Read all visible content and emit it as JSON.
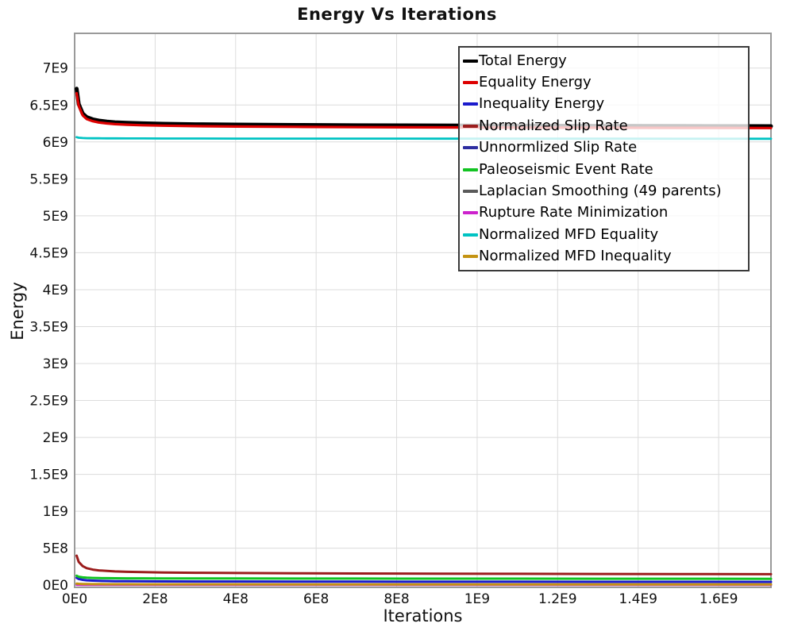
{
  "page": {
    "background": "#ffffff"
  },
  "chart_data": {
    "type": "line",
    "title": "Energy Vs Iterations",
    "xlabel": "Iterations",
    "ylabel": "Energy",
    "xlim": [
      0,
      1730000000.0
    ],
    "ylim": [
      -30000000.0,
      7470000000.0
    ],
    "grid": true,
    "grid_color": "#dcdcdc",
    "frame_color": "#9a9a9a",
    "tick_label_color": "#111111",
    "tick_font_size": 17,
    "legend_position": "top-right",
    "x_ticks": [
      {
        "value": 0,
        "label": "0E0"
      },
      {
        "value": 200000000.0,
        "label": "2E8"
      },
      {
        "value": 400000000.0,
        "label": "4E8"
      },
      {
        "value": 600000000.0,
        "label": "6E8"
      },
      {
        "value": 800000000.0,
        "label": "8E8"
      },
      {
        "value": 1000000000.0,
        "label": "1E9"
      },
      {
        "value": 1200000000.0,
        "label": "1.2E9"
      },
      {
        "value": 1400000000.0,
        "label": "1.4E9"
      },
      {
        "value": 1600000000.0,
        "label": "1.6E9"
      }
    ],
    "y_ticks": [
      {
        "value": 0,
        "label": "0E0"
      },
      {
        "value": 500000000.0,
        "label": "5E8"
      },
      {
        "value": 1000000000.0,
        "label": "1E9"
      },
      {
        "value": 1500000000.0,
        "label": "1.5E9"
      },
      {
        "value": 2000000000.0,
        "label": "2E9"
      },
      {
        "value": 2500000000.0,
        "label": "2.5E9"
      },
      {
        "value": 3000000000.0,
        "label": "3E9"
      },
      {
        "value": 3500000000.0,
        "label": "3.5E9"
      },
      {
        "value": 4000000000.0,
        "label": "4E9"
      },
      {
        "value": 4500000000.0,
        "label": "4.5E9"
      },
      {
        "value": 5000000000.0,
        "label": "5E9"
      },
      {
        "value": 5500000000.0,
        "label": "5.5E9"
      },
      {
        "value": 6000000000.0,
        "label": "6E9"
      },
      {
        "value": 6500000000.0,
        "label": "6.5E9"
      },
      {
        "value": 7000000000.0,
        "label": "7E9"
      }
    ],
    "x": [
      5000000.0,
      10000000.0,
      20000000.0,
      30000000.0,
      45000000.0,
      60000000.0,
      80000000.0,
      100000000.0,
      130000000.0,
      170000000.0,
      220000000.0,
      300000000.0,
      400000000.0,
      550000000.0,
      700000000.0,
      900000000.0,
      1100000000.0,
      1300000000.0,
      1500000000.0,
      1730000000.0
    ],
    "series": [
      {
        "id": "total-energy",
        "name": "Total Energy",
        "color": "#000000",
        "width": 5,
        "values": [
          6720000000.0,
          6515000000.0,
          6385000000.0,
          6335000000.0,
          6305000000.0,
          6288000000.0,
          6275000000.0,
          6266000000.0,
          6258000000.0,
          6251000000.0,
          6245000000.0,
          6239000000.0,
          6234000000.0,
          6229000000.0,
          6225000000.0,
          6222000000.0,
          6219000000.0,
          6217000000.0,
          6215000000.0,
          6213000000.0
        ]
      },
      {
        "id": "equality-energy",
        "name": "Equality Energy",
        "color": "#dd0000",
        "width": 3.2,
        "values": [
          6660000000.0,
          6490000000.0,
          6360000000.0,
          6310000000.0,
          6280000000.0,
          6263000000.0,
          6250000000.0,
          6241000000.0,
          6233000000.0,
          6226000000.0,
          6220000000.0,
          6214000000.0,
          6209000000.0,
          6204000000.0,
          6200000000.0,
          6197000000.0,
          6194000000.0,
          6192000000.0,
          6190000000.0,
          6188000000.0
        ]
      },
      {
        "id": "inequality-energy",
        "name": "Inequality Energy",
        "color": "#1a1acc",
        "width": 3,
        "values": [
          100000000.0,
          84000000.0,
          72000000.0,
          66000000.0,
          61000000.0,
          58000000.0,
          56000000.0,
          54000000.0,
          53000000.0,
          52000000.0,
          51000000.0,
          50000000.0,
          49000000.0,
          48000000.0,
          47000000.0,
          46000000.0,
          46000000.0,
          45000000.0,
          45000000.0,
          44000000.0
        ]
      },
      {
        "id": "normalized-slip-rate",
        "name": "Normalized Slip Rate",
        "color": "#9b1c1c",
        "width": 3,
        "values": [
          400000000.0,
          315000000.0,
          258000000.0,
          230000000.0,
          211000000.0,
          200000000.0,
          192000000.0,
          186000000.0,
          181000000.0,
          176000000.0,
          172000000.0,
          168000000.0,
          164000000.0,
          161000000.0,
          158000000.0,
          156000000.0,
          154000000.0,
          152000000.0,
          150000000.0,
          148000000.0
        ]
      },
      {
        "id": "unnormlized-slip-rate",
        "name": "Unnormlized Slip Rate",
        "color": "#2d2da0",
        "width": 2.5,
        "values": [
          7000000.0,
          6500000.0,
          6000000.0,
          6000000.0,
          6000000.0,
          6000000.0,
          5500000.0,
          5500000.0,
          5500000.0,
          5500000.0,
          5000000.0,
          5000000.0,
          5000000.0,
          5000000.0,
          5000000.0,
          5000000.0,
          5000000.0,
          5000000.0,
          5000000.0,
          5000000.0
        ]
      },
      {
        "id": "paleoseismic-event-rate",
        "name": "Paleoseismic Event Rate",
        "color": "#12c322",
        "width": 3,
        "values": [
          128000000.0,
          114000000.0,
          105000000.0,
          101000000.0,
          98000000.0,
          96000000.0,
          95000000.0,
          94000000.0,
          93000000.0,
          92000000.0,
          91000000.0,
          91000000.0,
          90000000.0,
          89000000.0,
          89000000.0,
          88000000.0,
          88000000.0,
          87000000.0,
          87000000.0,
          86000000.0
        ]
      },
      {
        "id": "laplacian-smoothing",
        "name": "Laplacian Smoothing (49 parents)",
        "color": "#5a5a5a",
        "width": 2.5,
        "values": [
          4000000.0,
          4000000.0,
          3500000.0,
          3500000.0,
          3500000.0,
          3500000.0,
          3000000.0,
          3000000.0,
          3000000.0,
          3000000.0,
          3000000.0,
          3000000.0,
          3000000.0,
          3000000.0,
          3000000.0,
          3000000.0,
          3000000.0,
          3000000.0,
          3000000.0,
          3000000.0
        ]
      },
      {
        "id": "rupture-rate-minimization",
        "name": "Rupture Rate Minimization",
        "color": "#cc22cc",
        "width": 2.5,
        "values": [
          2000000.0,
          2000000.0,
          2000000.0,
          2000000.0,
          2000000.0,
          2000000.0,
          2000000.0,
          2000000.0,
          2000000.0,
          2000000.0,
          2000000.0,
          2000000.0,
          2000000.0,
          2000000.0,
          2000000.0,
          2000000.0,
          2000000.0,
          2000000.0,
          2000000.0,
          2000000.0
        ]
      },
      {
        "id": "normalized-mfd-equality",
        "name": "Normalized MFD Equality",
        "color": "#00c3c3",
        "width": 2.8,
        "values": [
          6065000000.0,
          6057000000.0,
          6053000000.0,
          6051000000.0,
          6050000000.0,
          6049000000.0,
          6048000000.0,
          6048000000.0,
          6047000000.0,
          6047000000.0,
          6046000000.0,
          6046000000.0,
          6045000000.0,
          6045000000.0,
          6045000000.0,
          6044000000.0,
          6044000000.0,
          6044000000.0,
          6043000000.0,
          6043000000.0
        ]
      },
      {
        "id": "normalized-mfd-inequality",
        "name": "Normalized MFD Inequality",
        "color": "#c49312",
        "width": 3,
        "values": [
          22000000.0,
          18000000.0,
          16000000.0,
          15000000.0,
          14000000.0,
          14000000.0,
          13000000.0,
          13000000.0,
          13000000.0,
          12000000.0,
          12000000.0,
          12000000.0,
          12000000.0,
          11000000.0,
          11000000.0,
          11000000.0,
          11000000.0,
          11000000.0,
          10000000.0,
          10000000.0
        ]
      }
    ]
  }
}
